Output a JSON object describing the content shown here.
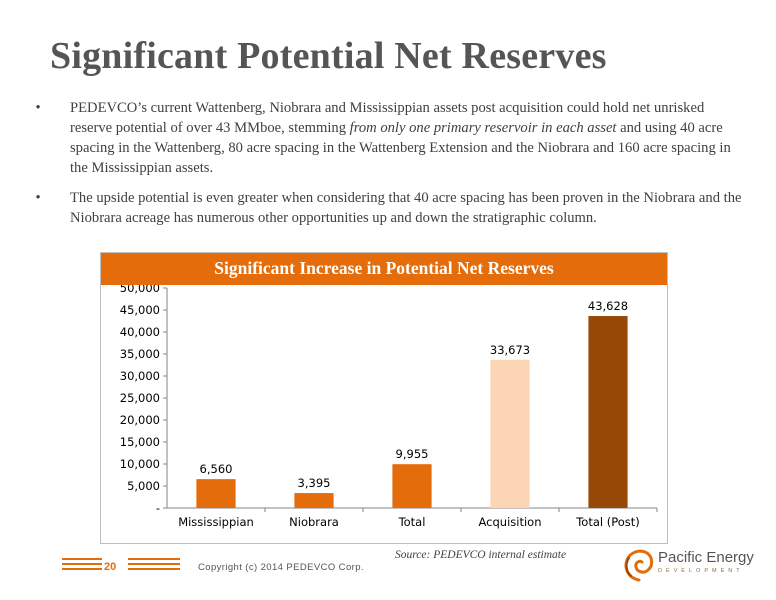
{
  "slide": {
    "title": "Significant Potential Net Reserves",
    "bullets": [
      {
        "before": "PEDEVCO’s current Wattenberg, Niobrara and Mississippian assets post acquisition could hold net unrisked reserve potential of over 43 MMboe, stemming ",
        "emphasis": "from only one primary reservoir in each asset",
        "after": " and using 40 acre spacing in the Wattenberg, 80 acre spacing in the Wattenberg Extension and the Niobrara and 160 acre spacing in the Mississippian assets."
      },
      {
        "before": "The upside potential is even greater when considering that 40 acre spacing has been proven in the Niobrara and the Niobrara acreage has  numerous other opportunities up and down the stratigraphic column.",
        "emphasis": "",
        "after": ""
      }
    ],
    "bullet_symbol": "•",
    "source": "Source: PEDEVCO internal estimate",
    "page_number": "20",
    "copyright": "Copyright (c) 2014 PEDEVCO Corp.",
    "logo_name": "Pacific Energy",
    "logo_sub": "DEVELOPMENT"
  },
  "chart_data": {
    "type": "bar",
    "title": "Significant Increase in Potential Net Reserves",
    "categories": [
      "Mississippian",
      "Niobrara",
      "Total",
      "Acquisition",
      "Total (Post)"
    ],
    "values": [
      6560,
      3395,
      9955,
      33673,
      43628
    ],
    "value_labels": [
      "6,560",
      "3,395",
      "9,955",
      "33,673",
      "43,628"
    ],
    "bar_colors": [
      "#e46c0a",
      "#e46c0a",
      "#e46c0a",
      "#fcd5b5",
      "#974806"
    ],
    "ylim": [
      0,
      50000
    ],
    "yticks": [
      0,
      5000,
      10000,
      15000,
      20000,
      25000,
      30000,
      35000,
      40000,
      45000,
      50000
    ],
    "ytick_labels": [
      "-",
      "5,000",
      "10,000",
      "15,000",
      "20,000",
      "25,000",
      "30,000",
      "35,000",
      "40,000",
      "45,000",
      "50,000"
    ],
    "xlabel": "",
    "ylabel": "",
    "grid": false,
    "legend": "none"
  }
}
